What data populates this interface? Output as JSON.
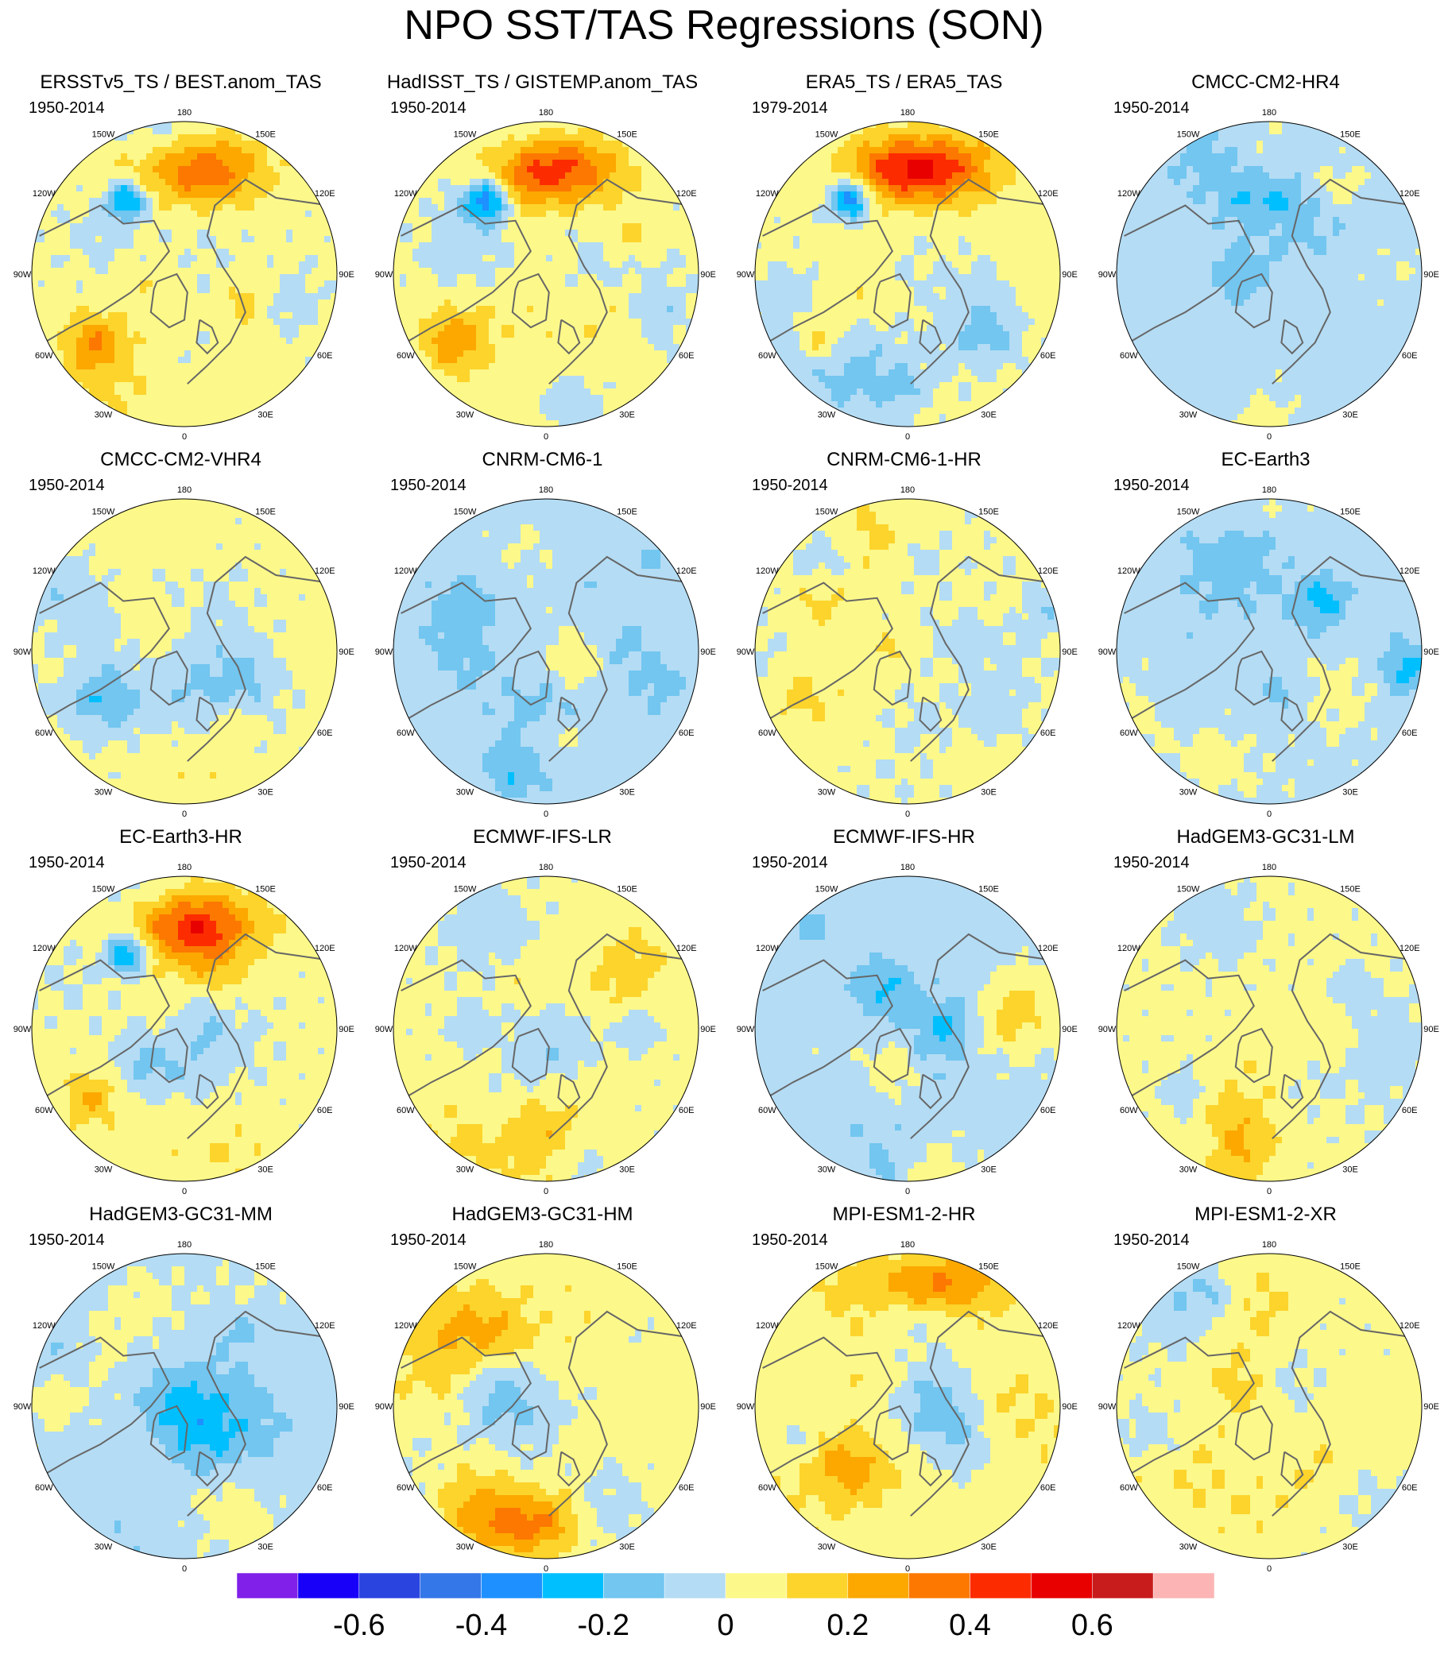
{
  "title": "NPO SST/TAS Regressions (SON)",
  "longitude_labels": [
    "180",
    "150E",
    "120E",
    "90E",
    "60E",
    "30E",
    "0",
    "30W",
    "60W",
    "90W",
    "120W",
    "150W"
  ],
  "palette": [
    "#8020e8",
    "#1800f8",
    "#2a44e0",
    "#3477e8",
    "#1e90ff",
    "#00bfff",
    "#72c6f0",
    "#b4dcf4",
    "#fcf88a",
    "#fcd42c",
    "#fca800",
    "#fc7800",
    "#fc2c00",
    "#e80000",
    "#c81c1c",
    "#fcb4b4"
  ],
  "colorbar": {
    "levels": [
      -0.7,
      -0.6,
      -0.5,
      -0.4,
      -0.3,
      -0.2,
      -0.1,
      0,
      0.1,
      0.2,
      0.3,
      0.4,
      0.5,
      0.6,
      0.7
    ],
    "tick_labels": [
      "-0.6",
      "-0.4",
      "-0.2",
      "0",
      "0.2",
      "0.4",
      "0.6"
    ]
  },
  "panels": [
    {
      "title": "ERSSTv5_TS / BEST.anom_TAS",
      "years": "1950-2014",
      "seed": 11,
      "pattern": "npo"
    },
    {
      "title": "HadISST_TS / GISTEMP.anom_TAS",
      "years": "1950-2014",
      "seed": 23,
      "pattern": "npo"
    },
    {
      "title": "ERA5_TS / ERA5_TAS",
      "years": "1979-2014",
      "seed": 37,
      "pattern": "npo-strong"
    },
    {
      "title": "CMCC-CM2-HR4",
      "years": "1950-2014",
      "seed": 41,
      "pattern": "blue"
    },
    {
      "title": "CMCC-CM2-VHR4",
      "years": "1950-2014",
      "seed": 53,
      "pattern": "mixed"
    },
    {
      "title": "CNRM-CM6-1",
      "years": "1950-2014",
      "seed": 67,
      "pattern": "blue"
    },
    {
      "title": "CNRM-CM6-1-HR",
      "years": "1950-2014",
      "seed": 71,
      "pattern": "mixed-warm"
    },
    {
      "title": "EC-Earth3",
      "years": "1950-2014",
      "seed": 83,
      "pattern": "blue"
    },
    {
      "title": "EC-Earth3-HR",
      "years": "1950-2014",
      "seed": 97,
      "pattern": "npo"
    },
    {
      "title": "ECMWF-IFS-LR",
      "years": "1950-2014",
      "seed": 101,
      "pattern": "mixed"
    },
    {
      "title": "ECMWF-IFS-HR",
      "years": "1950-2014",
      "seed": 113,
      "pattern": "blue"
    },
    {
      "title": "HadGEM3-GC31-LM",
      "years": "1950-2014",
      "seed": 127,
      "pattern": "mixed"
    },
    {
      "title": "HadGEM3-GC31-MM",
      "years": "1950-2014",
      "seed": 131,
      "pattern": "blue"
    },
    {
      "title": "HadGEM3-GC31-HM",
      "years": "1950-2014",
      "seed": 149,
      "pattern": "warm"
    },
    {
      "title": "MPI-ESM1-2-HR",
      "years": "1950-2014",
      "seed": 157,
      "pattern": "warm-strong"
    },
    {
      "title": "MPI-ESM1-2-XR",
      "years": "1950-2014",
      "seed": 163,
      "pattern": "mixed"
    }
  ]
}
